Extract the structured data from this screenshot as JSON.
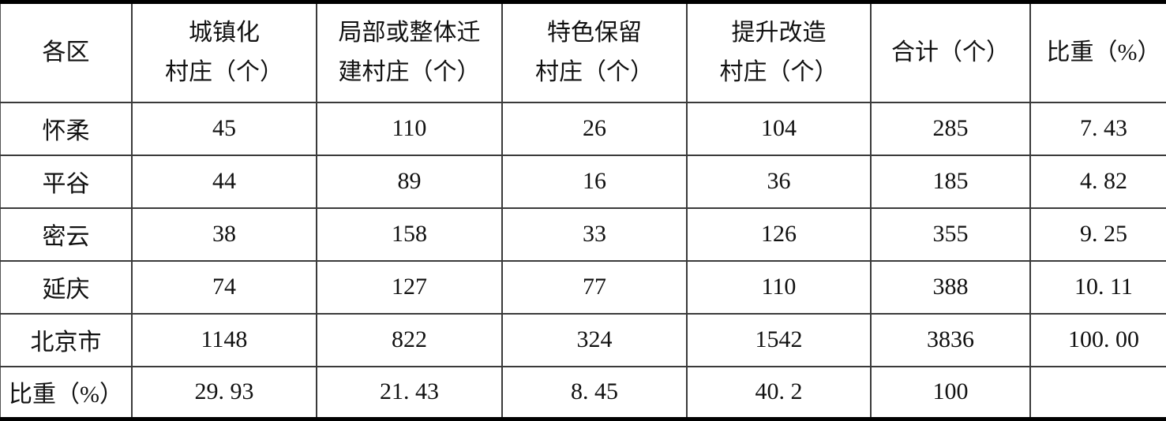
{
  "table": {
    "columns": [
      {
        "id": "district",
        "label_lines": [
          "各区"
        ]
      },
      {
        "id": "urbanized",
        "label_lines": [
          "城镇化",
          "村庄（个）"
        ]
      },
      {
        "id": "relocated",
        "label_lines": [
          "局部或整体迁",
          "建村庄（个）"
        ]
      },
      {
        "id": "characteristic",
        "label_lines": [
          "特色保留",
          "村庄（个）"
        ]
      },
      {
        "id": "upgraded",
        "label_lines": [
          "提升改造",
          "村庄（个）"
        ]
      },
      {
        "id": "total",
        "label_lines": [
          "合计（个）"
        ]
      },
      {
        "id": "proportion",
        "label_lines": [
          "比重（%）"
        ]
      }
    ],
    "rows": [
      {
        "cells": [
          "怀柔",
          "45",
          "110",
          "26",
          "104",
          "285",
          "7. 43"
        ]
      },
      {
        "cells": [
          "平谷",
          "44",
          "89",
          "16",
          "36",
          "185",
          "4. 82"
        ]
      },
      {
        "cells": [
          "密云",
          "38",
          "158",
          "33",
          "126",
          "355",
          "9. 25"
        ]
      },
      {
        "cells": [
          "延庆",
          "74",
          "127",
          "77",
          "110",
          "388",
          "10. 11"
        ]
      },
      {
        "cells": [
          "北京市",
          "1148",
          "822",
          "324",
          "1542",
          "3836",
          "100. 00"
        ]
      },
      {
        "cells": [
          "比重（%）",
          "29. 93",
          "21. 43",
          "8. 45",
          "40. 2",
          "100",
          ""
        ]
      }
    ]
  },
  "colors": {
    "background": "#ffffff",
    "text": "#111111",
    "inner_border": "#3a3a3a",
    "outer_border": "#000000"
  }
}
